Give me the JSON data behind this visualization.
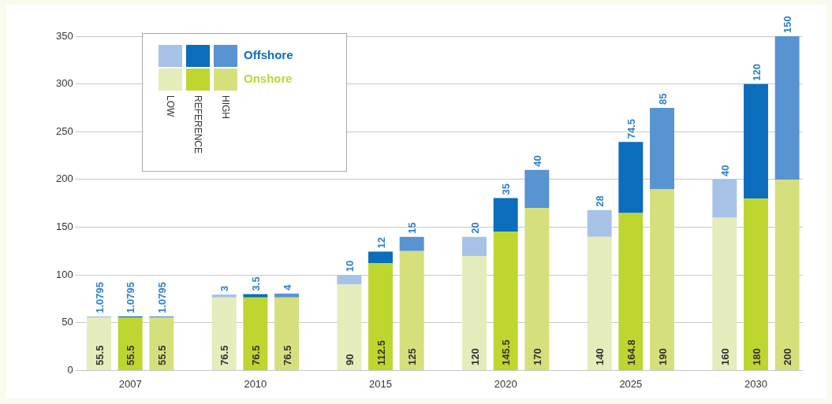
{
  "chart_data": {
    "type": "bar",
    "stacked": true,
    "categories": [
      null,
      "2007",
      null,
      null,
      null,
      "2010",
      null,
      null,
      null,
      "2015",
      null,
      null,
      null,
      "2020",
      null,
      null,
      null,
      "2025",
      null,
      null,
      null,
      "2030",
      null
    ],
    "series": [
      {
        "name": "Onshore",
        "color": "#bed630",
        "colors": [
          "#e4edbb",
          "#bed630",
          "#d5e07c",
          null,
          "#e4edbb",
          "#bed630",
          "#d5e07c",
          null,
          "#e4edbb",
          "#bed630",
          "#d5e07c",
          null,
          "#e4edbb",
          "#bed630",
          "#d5e07c",
          null,
          "#e4edbb",
          "#bed630",
          "#d5e07c",
          null,
          "#e4edbb",
          "#bed630",
          "#d5e07c"
        ],
        "values": [
          55.5,
          55.5,
          55.5,
          null,
          76.5,
          76.5,
          76.5,
          null,
          90,
          112.5,
          125,
          null,
          120,
          145.5,
          170,
          null,
          140,
          164.8,
          190,
          null,
          160,
          180,
          200
        ]
      },
      {
        "name": "Offshore",
        "color": "#0b6dbc",
        "colors": [
          "#a7c2e7",
          "#0b6dbc",
          "#5893d2",
          null,
          "#a7c2e7",
          "#0b6dbc",
          "#5893d2",
          null,
          "#a7c2e7",
          "#0b6dbc",
          "#5893d2",
          null,
          "#a7c2e7",
          "#0b6dbc",
          "#5893d2",
          null,
          "#a7c2e7",
          "#0b6dbc",
          "#5893d2",
          null,
          "#a7c2e7",
          "#0b6dbc",
          "#5893d2"
        ],
        "values": [
          1.0795,
          1.0795,
          1.0795,
          null,
          3,
          3.5,
          4,
          null,
          10,
          12,
          15,
          null,
          20,
          35,
          40,
          null,
          28,
          74.5,
          85,
          null,
          40,
          120,
          150
        ]
      }
    ],
    "ylim": [
      0,
      350
    ],
    "yticks": [
      0,
      50,
      100,
      150,
      200,
      250,
      300,
      350
    ],
    "grid": "y",
    "data_labels": true,
    "legend": "top left",
    "annotations": [
      "LOW",
      "REFERENCE",
      "HIGH"
    ]
  }
}
